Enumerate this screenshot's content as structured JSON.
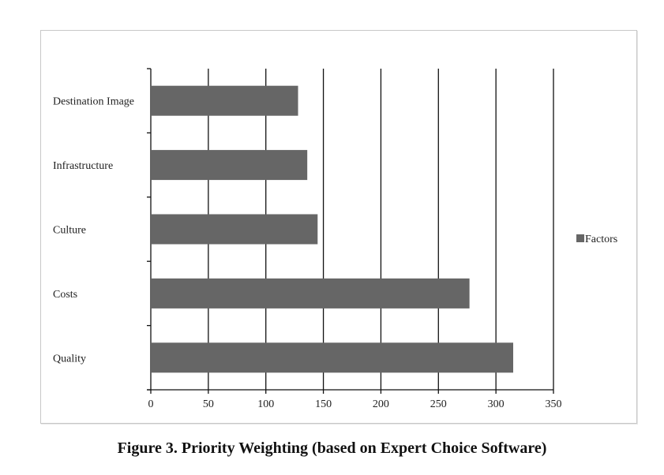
{
  "caption": "Figure 3. Priority Weighting (based on Expert Choice Software)",
  "colors": {
    "bar": "#666666",
    "grid": "#111111",
    "axis": "#111111"
  },
  "chart_data": {
    "type": "bar",
    "orientation": "horizontal",
    "categories": [
      "Destination Image",
      "Infrastructure",
      "Culture",
      "Costs",
      "Quality"
    ],
    "series": [
      {
        "name": "Factors",
        "values": [
          128,
          136,
          145,
          277,
          315
        ]
      }
    ],
    "xlim": [
      0,
      350
    ],
    "xticks": [
      "0",
      "50",
      "100",
      "150",
      "200",
      "250",
      "300",
      "350"
    ],
    "grid": true,
    "legend": "right"
  }
}
